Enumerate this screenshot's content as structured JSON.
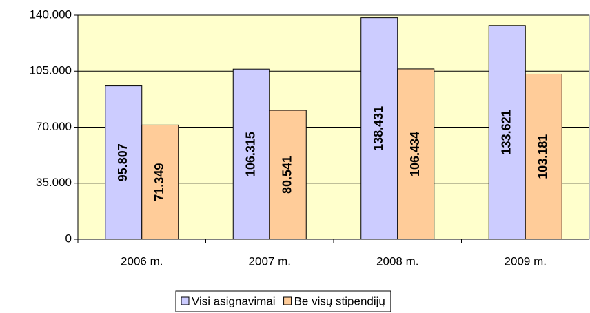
{
  "chart_data": {
    "type": "bar",
    "categories": [
      "2006 m.",
      "2007 m.",
      "2008 m.",
      "2009 m."
    ],
    "series": [
      {
        "name": "Visi asignavimai",
        "color": "#ccccff",
        "values": [
          95807,
          106315,
          138431,
          133621
        ],
        "value_labels": [
          "95.807",
          "106.315",
          "138.431",
          "133.621"
        ]
      },
      {
        "name": "Be visų stipendijų",
        "color": "#ffcc99",
        "values": [
          71349,
          80541,
          106434,
          103181
        ],
        "value_labels": [
          "71.349",
          "80.541",
          "106.434",
          "103.181"
        ]
      }
    ],
    "ylim": [
      0,
      140000
    ],
    "yticks": [
      0,
      {
        "value": 35000,
        "label": "35.000"
      },
      {
        "value": 70000,
        "label": "70.000"
      },
      {
        "value": 105000,
        "label": "105.000"
      },
      {
        "value": 140000,
        "label": "140.000"
      }
    ],
    "grid": true,
    "legend": "bottom",
    "plot_background": "#ffffcc"
  }
}
